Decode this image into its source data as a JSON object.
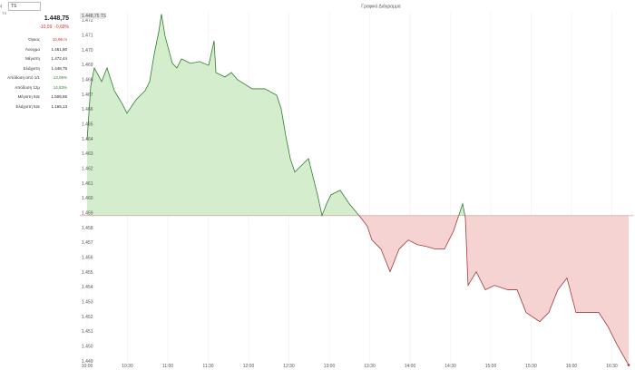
{
  "header": {
    "title": "Γραφικό Διάγραμμα",
    "search": "TS",
    "symbol": "TS"
  },
  "quote": {
    "price": "1.448,75",
    "change": "-10,09",
    "change_pct": "-0,69%",
    "stats": [
      {
        "label": "Όγκος",
        "value": "10,96 m",
        "tone": "neg"
      },
      {
        "label": "Άνοιγμα",
        "value": "1.461,80"
      },
      {
        "label": "Μέγιστη",
        "value": "1.472,44"
      },
      {
        "label": "Ελάχιστη",
        "value": "1.448,75"
      },
      {
        "label": "Απόδοση από 1/1",
        "value": "13,05%",
        "tone": "pos"
      },
      {
        "label": "Απόδοση 12μ",
        "value": "14,83%",
        "tone": "pos"
      },
      {
        "label": "Μέγιστη 52ε",
        "value": "1.505,55"
      },
      {
        "label": "Ελάχιστη 52ε",
        "value": "1.165,13"
      }
    ]
  },
  "chart_data": {
    "type": "area",
    "last_label": "1.448,75 TS",
    "baseline": 1458.84,
    "up_color": "#2e7d32",
    "up_fill": "#d4edcd",
    "down_color": "#a33a3a",
    "down_fill": "#f5d3d3",
    "grid": true,
    "x": [
      10.0,
      10.045,
      10.09,
      10.18,
      10.247,
      10.337,
      10.438,
      10.494,
      10.607,
      10.719,
      10.775,
      10.831,
      10.888,
      10.921,
      10.966,
      11.056,
      11.112,
      11.169,
      11.281,
      11.393,
      11.506,
      11.573,
      11.596,
      11.708,
      11.787,
      11.865,
      12.045,
      12.202,
      12.348,
      12.404,
      12.461,
      12.517,
      12.573,
      12.685,
      12.742,
      12.798,
      12.854,
      12.91,
      12.966,
      13.022,
      13.135,
      13.247,
      13.371,
      13.472,
      13.528,
      13.64,
      13.753,
      13.865,
      13.978,
      14.09,
      14.202,
      14.315,
      14.427,
      14.539,
      14.652,
      14.685,
      14.719,
      14.82,
      14.933,
      15.045,
      15.213,
      15.326,
      15.438,
      15.607,
      15.719,
      15.831,
      15.944,
      16.056,
      16.225,
      16.337,
      16.449,
      16.562,
      16.708
    ],
    "values": [
      1463.92,
      1467.59,
      1468.81,
      1467.89,
      1468.81,
      1467.28,
      1466.36,
      1465.75,
      1466.67,
      1467.28,
      1467.89,
      1469.73,
      1471.26,
      1472.44,
      1470.95,
      1469.12,
      1468.81,
      1469.42,
      1469.12,
      1469.24,
      1468.99,
      1470.64,
      1468.5,
      1468.2,
      1468.5,
      1468.01,
      1467.4,
      1467.4,
      1466.97,
      1466.06,
      1464.22,
      1462.69,
      1461.78,
      1462.39,
      1462.69,
      1461.47,
      1460.25,
      1458.84,
      1459.64,
      1460.25,
      1460.55,
      1459.64,
      1458.84,
      1458.11,
      1457.19,
      1456.58,
      1455.05,
      1456.58,
      1457.19,
      1456.88,
      1456.76,
      1456.58,
      1456.58,
      1457.8,
      1459.64,
      1458.72,
      1454.13,
      1455.05,
      1453.83,
      1454.13,
      1453.83,
      1453.83,
      1452.3,
      1451.68,
      1452.3,
      1453.83,
      1454.62,
      1452.3,
      1452.3,
      1452.3,
      1451.38,
      1450.15,
      1448.75
    ],
    "xlim": [
      9.91,
      16.77
    ],
    "xticks": [
      {
        "value": 10,
        "label": "10:00"
      },
      {
        "value": 10.5,
        "label": "10:30"
      },
      {
        "value": 11,
        "label": "11:00"
      },
      {
        "value": 11.5,
        "label": "11:30"
      },
      {
        "value": 12,
        "label": "12:00"
      },
      {
        "value": 12.5,
        "label": "12:30"
      },
      {
        "value": 13,
        "label": "13:00"
      },
      {
        "value": 13.5,
        "label": "13:30"
      },
      {
        "value": 14,
        "label": "14:00"
      },
      {
        "value": 14.5,
        "label": "14:30"
      },
      {
        "value": 15,
        "label": "15:00"
      },
      {
        "value": 15.5,
        "label": "15:30"
      },
      {
        "value": 16,
        "label": "16:00"
      },
      {
        "value": 16.5,
        "label": "16:30"
      }
    ],
    "ylim": [
      1448.6,
      1472.6
    ],
    "yticks": [
      {
        "value": 1449,
        "label": "1.449"
      },
      {
        "value": 1450,
        "label": "1.450"
      },
      {
        "value": 1451,
        "label": "1.451"
      },
      {
        "value": 1452,
        "label": "1.452"
      },
      {
        "value": 1453,
        "label": "1.453"
      },
      {
        "value": 1454,
        "label": "1.454"
      },
      {
        "value": 1455,
        "label": "1.455"
      },
      {
        "value": 1456,
        "label": "1.456"
      },
      {
        "value": 1457,
        "label": "1.457"
      },
      {
        "value": 1458,
        "label": "1.458"
      },
      {
        "value": 1459,
        "label": "1.459"
      },
      {
        "value": 1460,
        "label": "1.460"
      },
      {
        "value": 1461,
        "label": "1.461"
      },
      {
        "value": 1462,
        "label": "1.462"
      },
      {
        "value": 1463,
        "label": "1.463"
      },
      {
        "value": 1464,
        "label": "1.464"
      },
      {
        "value": 1465,
        "label": "1.465"
      },
      {
        "value": 1466,
        "label": "1.466"
      },
      {
        "value": 1467,
        "label": "1.467"
      },
      {
        "value": 1468,
        "label": "1.468"
      },
      {
        "value": 1469,
        "label": "1.469"
      },
      {
        "value": 1470,
        "label": "1.470"
      },
      {
        "value": 1471,
        "label": "1.471"
      },
      {
        "value": 1472,
        "label": "1.472"
      }
    ]
  }
}
